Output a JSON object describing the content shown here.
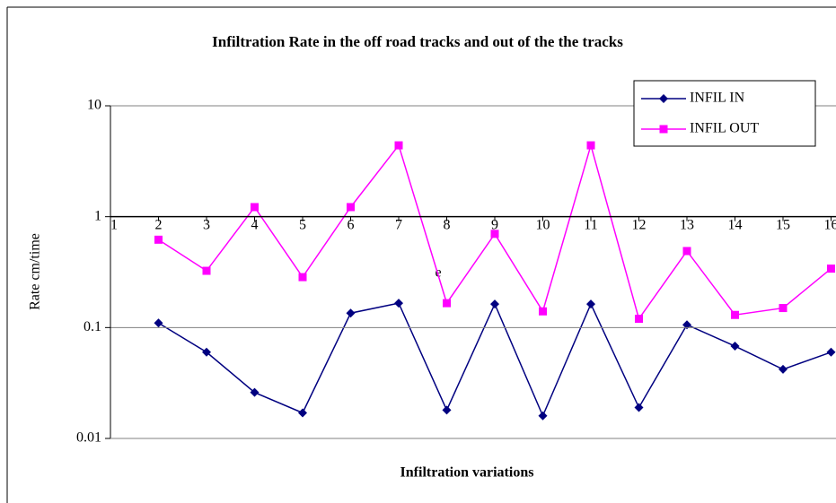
{
  "chart_data": {
    "type": "line",
    "title": "Infiltration Rate in the off road tracks and out of the the tracks",
    "x_label": "Infiltration variations",
    "y_label": "Rate cm/time",
    "annotation": "e",
    "categories": [
      "1",
      "2",
      "3",
      "4",
      "5",
      "6",
      "7",
      "8",
      "9",
      "10",
      "11",
      "12",
      "13",
      "14",
      "15",
      "16"
    ],
    "series": [
      {
        "name": "INFIL IN",
        "color": "#000080",
        "marker": "diamond",
        "values": [
          null,
          0.11,
          0.06,
          0.026,
          0.017,
          0.135,
          0.166,
          0.018,
          0.163,
          0.016,
          0.163,
          0.019,
          0.106,
          0.068,
          0.042,
          0.06
        ]
      },
      {
        "name": "INFIL OUT",
        "color": "#ff00ff",
        "marker": "square",
        "values": [
          null,
          0.62,
          0.325,
          1.22,
          0.285,
          1.22,
          4.4,
          0.166,
          0.7,
          0.14,
          4.4,
          0.12,
          0.49,
          0.13,
          0.15,
          0.34
        ]
      }
    ],
    "log_y": true,
    "ylim": [
      0.01,
      10
    ],
    "yticks": [
      0.01,
      0.1,
      1,
      10
    ],
    "x_axis_crosses": 1,
    "grid": true,
    "legend": "upper right"
  }
}
